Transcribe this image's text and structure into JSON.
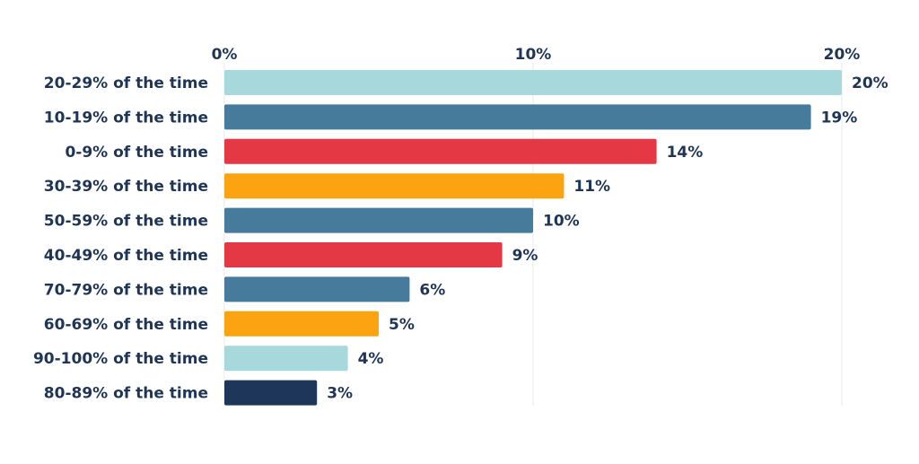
{
  "chart_data": {
    "type": "bar",
    "orientation": "horizontal",
    "axis_position": "top",
    "grid": true,
    "xlim": [
      0,
      20
    ],
    "xticks": [
      {
        "value": 0,
        "label": "0%"
      },
      {
        "value": 10,
        "label": "10%"
      },
      {
        "value": 20,
        "label": "20%"
      }
    ],
    "categories": [
      "20-29% of the time",
      "10-19% of the time",
      "0-9% of the time",
      "30-39% of the time",
      "50-59% of the time",
      "40-49% of the time",
      "70-79% of the time",
      "60-69% of the time",
      "90-100% of the time",
      "80-89% of the time"
    ],
    "values": [
      20,
      19,
      14,
      11,
      10,
      9,
      6,
      5,
      4,
      3
    ],
    "data_labels": [
      "20%",
      "19%",
      "14%",
      "11%",
      "10%",
      "9%",
      "6%",
      "5%",
      "4%",
      "3%"
    ],
    "colors": [
      "#a7d9dc",
      "#467b9c",
      "#e53845",
      "#fca311",
      "#467b9c",
      "#e53845",
      "#467b9c",
      "#fca311",
      "#a7d9dc",
      "#1e3659"
    ],
    "title": "",
    "xlabel": "",
    "ylabel": ""
  }
}
